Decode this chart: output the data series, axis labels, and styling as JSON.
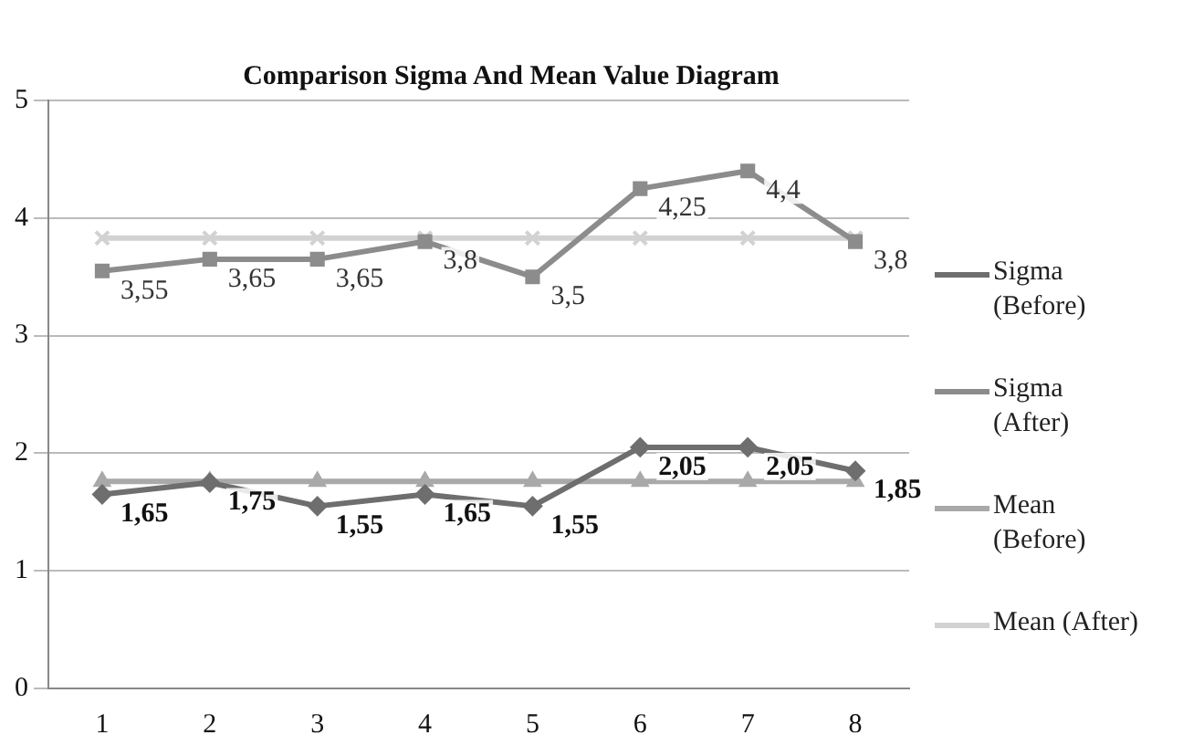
{
  "chart_data": {
    "type": "line",
    "title": "Comparison Sigma And Mean Value Diagram",
    "categories": [
      "1",
      "2",
      "3",
      "4",
      "5",
      "6",
      "7",
      "8"
    ],
    "series": [
      {
        "name": "Sigma (Before)",
        "color": "#6e6e6e",
        "marker": "diamond",
        "values": [
          1.65,
          1.75,
          1.55,
          1.65,
          1.55,
          2.05,
          2.05,
          1.85
        ],
        "value_labels": [
          "1,65",
          "1,75",
          "1,55",
          "1,65",
          "1,55",
          "2,05",
          "2,05",
          "1,85"
        ]
      },
      {
        "name": "Sigma (After)",
        "color": "#8c8c8c",
        "marker": "square",
        "values": [
          3.55,
          3.65,
          3.65,
          3.8,
          3.5,
          4.25,
          4.4,
          3.8
        ],
        "value_labels": [
          "3,55",
          "3,65",
          "3,65",
          "3,8",
          "3,5",
          "4,25",
          "4,4",
          "3,8"
        ]
      },
      {
        "name": "Mean (Before)",
        "color": "#a9a9a9",
        "marker": "triangle",
        "values": [
          1.76,
          1.76,
          1.76,
          1.76,
          1.76,
          1.76,
          1.76,
          1.76
        ]
      },
      {
        "name": "Mean (After)",
        "color": "#d2d2d2",
        "marker": "cross",
        "values": [
          3.83,
          3.83,
          3.83,
          3.83,
          3.83,
          3.83,
          3.83,
          3.83
        ]
      }
    ],
    "ylim": [
      0,
      5
    ],
    "yticks": [
      0,
      1,
      2,
      3,
      4,
      5
    ],
    "grid": "y",
    "legend": "right"
  }
}
